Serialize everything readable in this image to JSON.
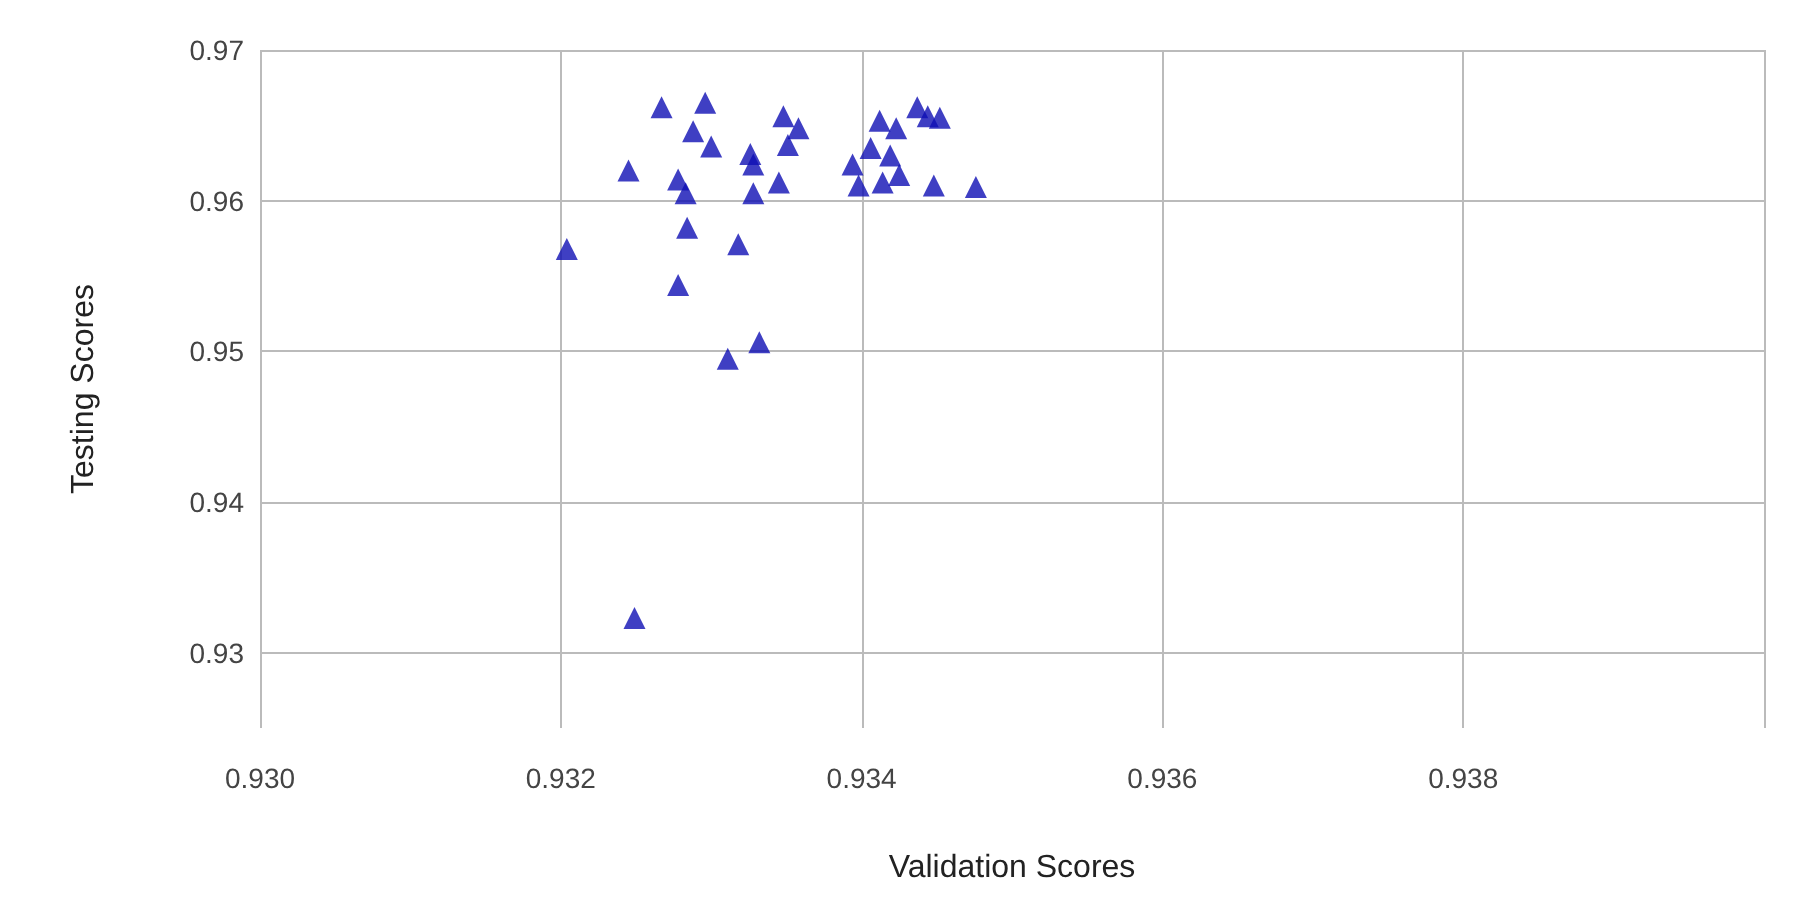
{
  "chart_data": {
    "type": "scatter",
    "xlabel": "Validation Scores",
    "ylabel": "Testing Scores",
    "marker": "triangle",
    "grid": true,
    "xlim": [
      0.93,
      0.94
    ],
    "xticks": [
      {
        "value": 0.93,
        "label": "0.930"
      },
      {
        "value": 0.932,
        "label": "0.932"
      },
      {
        "value": 0.934,
        "label": "0.934"
      },
      {
        "value": 0.936,
        "label": "0.936"
      },
      {
        "value": 0.938,
        "label": "0.938"
      },
      {
        "value": 0.94,
        "label": null
      }
    ],
    "ylim": [
      0.925,
      0.97
    ],
    "yticks": [
      0.93,
      0.94,
      0.95,
      0.96,
      0.97
    ],
    "series": [
      {
        "color": "#0f0fb4",
        "x": [
          0.93267,
          0.93296,
          0.93288,
          0.933,
          0.93245,
          0.93278,
          0.93283,
          0.93326,
          0.93328,
          0.93348,
          0.93358,
          0.93351,
          0.93345,
          0.93328,
          0.93284,
          0.93204,
          0.93318,
          0.93278,
          0.93332,
          0.93311,
          0.93412,
          0.93423,
          0.93437,
          0.93444,
          0.93452,
          0.93406,
          0.93419,
          0.93394,
          0.93425,
          0.93414,
          0.93398,
          0.93448,
          0.93476,
          0.93249
        ],
        "values": [
          0.9662,
          0.9665,
          0.9646,
          0.9636,
          0.962,
          0.9614,
          0.9605,
          0.9631,
          0.9624,
          0.9656,
          0.9648,
          0.9637,
          0.9612,
          0.9605,
          0.9582,
          0.9568,
          0.9571,
          0.9544,
          0.9506,
          0.9495,
          0.9653,
          0.9648,
          0.9662,
          0.9656,
          0.9655,
          0.9635,
          0.963,
          0.9624,
          0.9617,
          0.9612,
          0.961,
          0.961,
          0.9609,
          0.9323
        ]
      }
    ]
  }
}
